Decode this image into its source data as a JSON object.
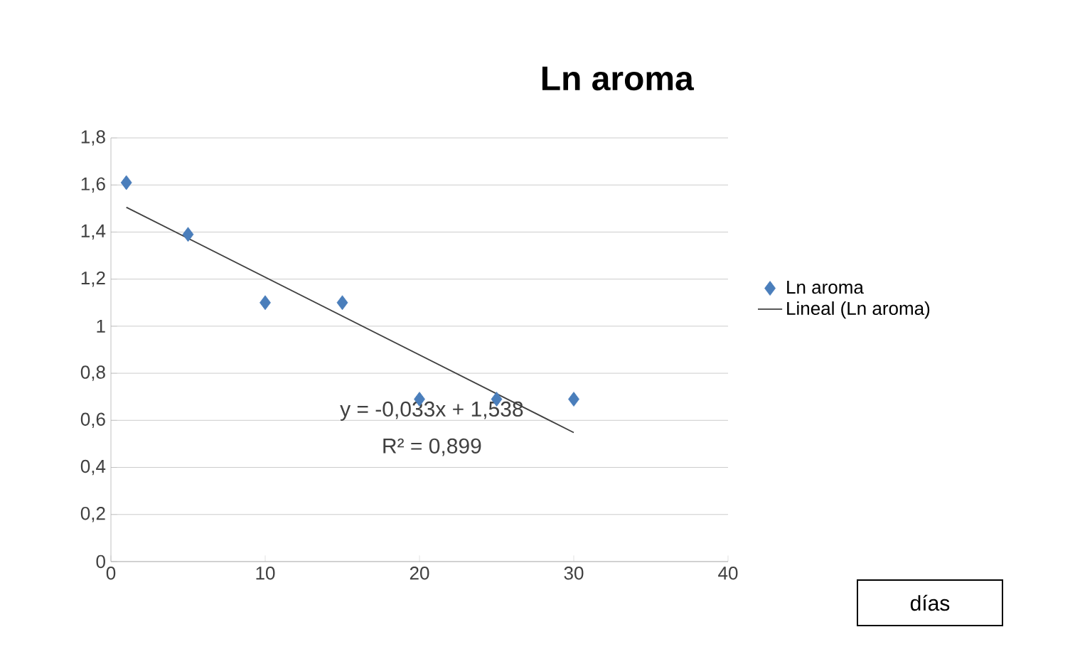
{
  "chart_data": {
    "type": "scatter",
    "title": "Ln aroma",
    "x": [
      1,
      5,
      10,
      15,
      20,
      25,
      30
    ],
    "series": [
      {
        "name": "Ln aroma",
        "color": "#4a7ebb",
        "marker": "diamond",
        "values": [
          1.61,
          1.39,
          1.1,
          1.1,
          0.69,
          0.69,
          0.69
        ]
      },
      {
        "name": "Lineal (Ln aroma)",
        "type": "line",
        "color": "#404040",
        "marker": "none",
        "x": [
          1,
          30
        ],
        "values": [
          1.505,
          0.548
        ]
      }
    ],
    "annotations": [
      "y = -0,033x + 1,538",
      "R² = 0,899",
      "días"
    ],
    "xlim": [
      0,
      40
    ],
    "xticks": [
      0,
      10,
      20,
      30,
      40
    ],
    "ylim": [
      0,
      1.8
    ],
    "yticks": [
      {
        "value": 0,
        "label": "0"
      },
      {
        "value": 0.2,
        "label": "0,2"
      },
      {
        "value": 0.4,
        "label": "0,4"
      },
      {
        "value": 0.6,
        "label": "0,6"
      },
      {
        "value": 0.8,
        "label": "0,8"
      },
      {
        "value": 1,
        "label": "1"
      },
      {
        "value": 1.2,
        "label": "1,2"
      },
      {
        "value": 1.4,
        "label": "1,4"
      },
      {
        "value": 1.6,
        "label": "1,6"
      },
      {
        "value": 1.8,
        "label": "1,8"
      }
    ],
    "grid": "y",
    "legend": "right"
  }
}
